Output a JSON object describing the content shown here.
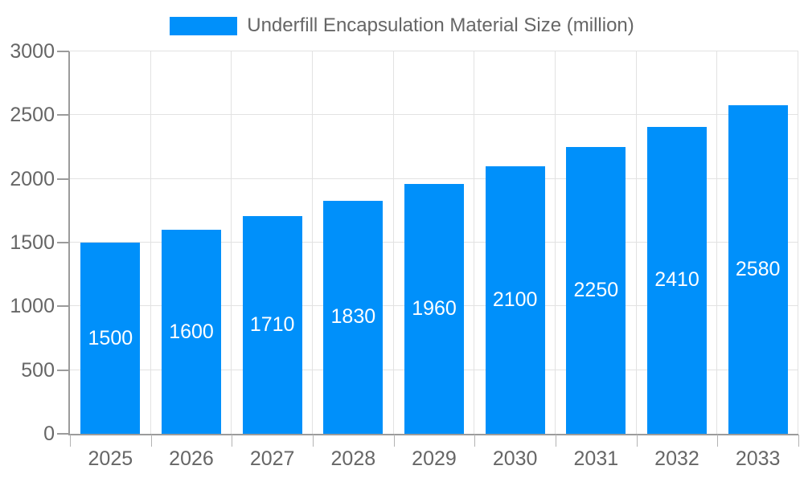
{
  "chart_data": {
    "type": "bar",
    "series_name": "Underfill Encapsulation Material Size (million)",
    "categories": [
      "2025",
      "2026",
      "2027",
      "2028",
      "2029",
      "2030",
      "2031",
      "2032",
      "2033"
    ],
    "values": [
      1500,
      1600,
      1710,
      1830,
      1960,
      2100,
      2250,
      2410,
      2580
    ],
    "title": "",
    "xlabel": "",
    "ylabel": "",
    "ylim": [
      0,
      3000
    ],
    "yticks": [
      0,
      500,
      1000,
      1500,
      2000,
      2500,
      3000
    ],
    "grid": true,
    "legend_position": "top",
    "bar_color": "#0090fa",
    "bar_label_color": "#ffffff",
    "grid_color": "#e2e2e2",
    "axis_color": "#9b9b9b",
    "tick_text_color": "#666666"
  }
}
